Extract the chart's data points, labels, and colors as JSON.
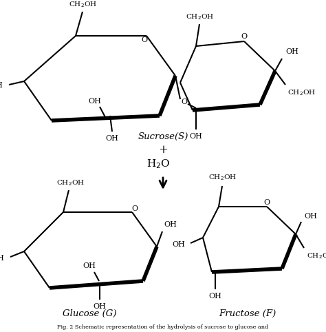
{
  "background_color": "#ffffff",
  "bold_lw": 4.0,
  "thin_lw": 1.5,
  "sucrose_label": "Sucrose(S)",
  "glucose_label": "Glucose (G)",
  "fructose_label": "Fructose (F)",
  "fig_caption": "Fig. 2 Schematic representation of the hydrolysis of sucrose to glucose and"
}
